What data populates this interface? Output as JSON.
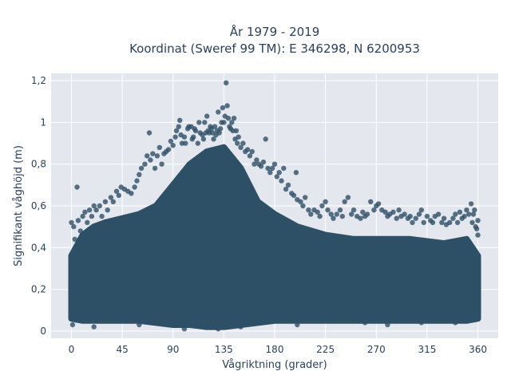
{
  "chart_data": {
    "type": "scatter",
    "title_lines": [
      "År 1979 - 2019",
      "Koordinat (Sweref 99 TM): E 346298, N 6200953"
    ],
    "xlabel": "Vågriktning (grader)",
    "ylabel": "Signifikant våghöjd (m)",
    "xlim": [
      -18,
      378
    ],
    "ylim": [
      -0.035,
      1.235
    ],
    "xticks": [
      0,
      45,
      90,
      135,
      180,
      225,
      270,
      315,
      360
    ],
    "xtick_labels": [
      "0",
      "45",
      "90",
      "135",
      "180",
      "225",
      "270",
      "315",
      "360"
    ],
    "yticks": [
      0,
      0.2,
      0.4,
      0.6,
      0.8,
      1.0,
      1.2
    ],
    "ytick_labels": [
      "0",
      "0,2",
      "0,4",
      "0,6",
      "0,8",
      "1",
      "1,2"
    ],
    "grid": true,
    "colors": {
      "marker": "#2e5066",
      "plot_background": "#e5e7ef",
      "grid": "#ffffff",
      "text": "#2a3f5f"
    },
    "dense_band": [
      {
        "x": 0,
        "ymin": 0.06,
        "ymax": 0.36
      },
      {
        "x": 10,
        "ymin": 0.05,
        "ymax": 0.46
      },
      {
        "x": 20,
        "ymin": 0.05,
        "ymax": 0.5
      },
      {
        "x": 30,
        "ymin": 0.05,
        "ymax": 0.52
      },
      {
        "x": 45,
        "ymin": 0.05,
        "ymax": 0.54
      },
      {
        "x": 60,
        "ymin": 0.05,
        "ymax": 0.56
      },
      {
        "x": 75,
        "ymin": 0.04,
        "ymax": 0.6
      },
      {
        "x": 90,
        "ymin": 0.03,
        "ymax": 0.7
      },
      {
        "x": 105,
        "ymin": 0.03,
        "ymax": 0.8
      },
      {
        "x": 120,
        "ymin": 0.02,
        "ymax": 0.86
      },
      {
        "x": 135,
        "ymin": 0.02,
        "ymax": 0.88
      },
      {
        "x": 150,
        "ymin": 0.03,
        "ymax": 0.78
      },
      {
        "x": 165,
        "ymin": 0.04,
        "ymax": 0.62
      },
      {
        "x": 180,
        "ymin": 0.05,
        "ymax": 0.56
      },
      {
        "x": 200,
        "ymin": 0.05,
        "ymax": 0.5
      },
      {
        "x": 225,
        "ymin": 0.05,
        "ymax": 0.46
      },
      {
        "x": 250,
        "ymin": 0.05,
        "ymax": 0.44
      },
      {
        "x": 270,
        "ymin": 0.05,
        "ymax": 0.44
      },
      {
        "x": 300,
        "ymin": 0.05,
        "ymax": 0.44
      },
      {
        "x": 330,
        "ymin": 0.05,
        "ymax": 0.42
      },
      {
        "x": 350,
        "ymin": 0.05,
        "ymax": 0.44
      },
      {
        "x": 360,
        "ymin": 0.06,
        "ymax": 0.36
      }
    ],
    "points": [
      [
        0,
        0.52
      ],
      [
        0,
        0.35
      ],
      [
        1,
        0.03
      ],
      [
        2,
        0.5
      ],
      [
        3,
        0.44
      ],
      [
        5,
        0.69
      ],
      [
        6,
        0.53
      ],
      [
        8,
        0.48
      ],
      [
        10,
        0.55
      ],
      [
        12,
        0.57
      ],
      [
        14,
        0.52
      ],
      [
        16,
        0.58
      ],
      [
        18,
        0.55
      ],
      [
        20,
        0.6
      ],
      [
        22,
        0.58
      ],
      [
        25,
        0.6
      ],
      [
        27,
        0.55
      ],
      [
        30,
        0.62
      ],
      [
        32,
        0.58
      ],
      [
        35,
        0.64
      ],
      [
        37,
        0.62
      ],
      [
        40,
        0.67
      ],
      [
        42,
        0.65
      ],
      [
        44,
        0.69
      ],
      [
        47,
        0.68
      ],
      [
        50,
        0.67
      ],
      [
        53,
        0.66
      ],
      [
        56,
        0.69
      ],
      [
        58,
        0.72
      ],
      [
        60,
        0.75
      ],
      [
        62,
        0.78
      ],
      [
        65,
        0.8
      ],
      [
        67,
        0.84
      ],
      [
        69,
        0.95
      ],
      [
        70,
        0.82
      ],
      [
        72,
        0.85
      ],
      [
        74,
        0.78
      ],
      [
        76,
        0.84
      ],
      [
        78,
        0.88
      ],
      [
        80,
        0.8
      ],
      [
        82,
        0.85
      ],
      [
        84,
        0.86
      ],
      [
        86,
        0.87
      ],
      [
        88,
        0.91
      ],
      [
        90,
        0.89
      ],
      [
        92,
        0.93
      ],
      [
        93,
        0.96
      ],
      [
        95,
        0.98
      ],
      [
        96,
        1.01
      ],
      [
        97,
        0.94
      ],
      [
        98,
        0.9
      ],
      [
        100,
        0.93
      ],
      [
        101,
        0.9
      ],
      [
        103,
        0.97
      ],
      [
        104,
        0.98
      ],
      [
        106,
        0.98
      ],
      [
        107,
        0.92
      ],
      [
        108,
        0.93
      ],
      [
        109,
        0.97
      ],
      [
        110,
        0.96
      ],
      [
        112,
        0.9
      ],
      [
        113,
        1.0
      ],
      [
        114,
        0.95
      ],
      [
        116,
        0.94
      ],
      [
        117,
        0.92
      ],
      [
        118,
        1.0
      ],
      [
        119,
        0.95
      ],
      [
        120,
        1.03
      ],
      [
        121,
        0.96
      ],
      [
        122,
        0.95
      ],
      [
        123,
        0.98
      ],
      [
        124,
        0.97
      ],
      [
        125,
        0.95
      ],
      [
        126,
        0.92
      ],
      [
        127,
        0.98
      ],
      [
        128,
        0.94
      ],
      [
        129,
        0.96
      ],
      [
        130,
        1.05
      ],
      [
        131,
        0.95
      ],
      [
        132,
        0.97
      ],
      [
        133,
        1.0
      ],
      [
        134,
        1.07
      ],
      [
        135,
        1.0
      ],
      [
        136,
        1.03
      ],
      [
        137,
        1.19
      ],
      [
        138,
        1.08
      ],
      [
        139,
        1.02
      ],
      [
        140,
        0.98
      ],
      [
        141,
        0.97
      ],
      [
        142,
        1.0
      ],
      [
        143,
        0.96
      ],
      [
        144,
        1.02
      ],
      [
        145,
        0.92
      ],
      [
        146,
        0.96
      ],
      [
        147,
        0.9
      ],
      [
        148,
        0.93
      ],
      [
        150,
        0.88
      ],
      [
        152,
        0.9
      ],
      [
        154,
        0.86
      ],
      [
        156,
        0.87
      ],
      [
        158,
        0.84
      ],
      [
        160,
        0.86
      ],
      [
        162,
        0.8
      ],
      [
        164,
        0.82
      ],
      [
        166,
        0.8
      ],
      [
        168,
        0.79
      ],
      [
        170,
        0.81
      ],
      [
        172,
        0.92
      ],
      [
        174,
        0.78
      ],
      [
        176,
        0.76
      ],
      [
        178,
        0.78
      ],
      [
        180,
        0.8
      ],
      [
        182,
        0.74
      ],
      [
        184,
        0.76
      ],
      [
        186,
        0.72
      ],
      [
        188,
        0.78
      ],
      [
        190,
        0.68
      ],
      [
        192,
        0.7
      ],
      [
        195,
        0.66
      ],
      [
        197,
        0.65
      ],
      [
        199,
        0.76
      ],
      [
        200,
        0.63
      ],
      [
        203,
        0.62
      ],
      [
        205,
        0.6
      ],
      [
        207,
        0.64
      ],
      [
        210,
        0.58
      ],
      [
        212,
        0.56
      ],
      [
        215,
        0.58
      ],
      [
        218,
        0.57
      ],
      [
        220,
        0.55
      ],
      [
        222,
        0.6
      ],
      [
        225,
        0.62
      ],
      [
        227,
        0.58
      ],
      [
        230,
        0.56
      ],
      [
        232,
        0.54
      ],
      [
        235,
        0.56
      ],
      [
        238,
        0.58
      ],
      [
        240,
        0.55
      ],
      [
        242,
        0.62
      ],
      [
        245,
        0.64
      ],
      [
        248,
        0.56
      ],
      [
        250,
        0.58
      ],
      [
        253,
        0.55
      ],
      [
        256,
        0.54
      ],
      [
        258,
        0.57
      ],
      [
        260,
        0.55
      ],
      [
        262,
        0.56
      ],
      [
        265,
        0.62
      ],
      [
        268,
        0.58
      ],
      [
        270,
        0.6
      ],
      [
        272,
        0.61
      ],
      [
        275,
        0.58
      ],
      [
        278,
        0.57
      ],
      [
        280,
        0.55
      ],
      [
        282,
        0.56
      ],
      [
        285,
        0.57
      ],
      [
        288,
        0.54
      ],
      [
        290,
        0.58
      ],
      [
        292,
        0.55
      ],
      [
        295,
        0.56
      ],
      [
        298,
        0.54
      ],
      [
        300,
        0.55
      ],
      [
        302,
        0.52
      ],
      [
        305,
        0.54
      ],
      [
        308,
        0.56
      ],
      [
        310,
        0.58
      ],
      [
        312,
        0.52
      ],
      [
        315,
        0.55
      ],
      [
        318,
        0.53
      ],
      [
        320,
        0.52
      ],
      [
        322,
        0.55
      ],
      [
        325,
        0.56
      ],
      [
        328,
        0.52
      ],
      [
        330,
        0.54
      ],
      [
        332,
        0.51
      ],
      [
        335,
        0.52
      ],
      [
        338,
        0.54
      ],
      [
        340,
        0.56
      ],
      [
        342,
        0.52
      ],
      [
        344,
        0.57
      ],
      [
        346,
        0.54
      ],
      [
        348,
        0.55
      ],
      [
        350,
        0.58
      ],
      [
        352,
        0.56
      ],
      [
        354,
        0.61
      ],
      [
        355,
        0.52
      ],
      [
        356,
        0.56
      ],
      [
        357,
        0.58
      ],
      [
        358,
        0.5
      ],
      [
        359,
        0.49
      ],
      [
        360,
        0.46
      ],
      [
        360,
        0.53
      ],
      [
        20,
        0.02
      ],
      [
        60,
        0.03
      ],
      [
        100,
        0.01
      ],
      [
        130,
        0.01
      ],
      [
        150,
        0.02
      ],
      [
        200,
        0.03
      ],
      [
        260,
        0.04
      ],
      [
        280,
        0.03
      ],
      [
        310,
        0.04
      ],
      [
        340,
        0.04
      ]
    ]
  }
}
